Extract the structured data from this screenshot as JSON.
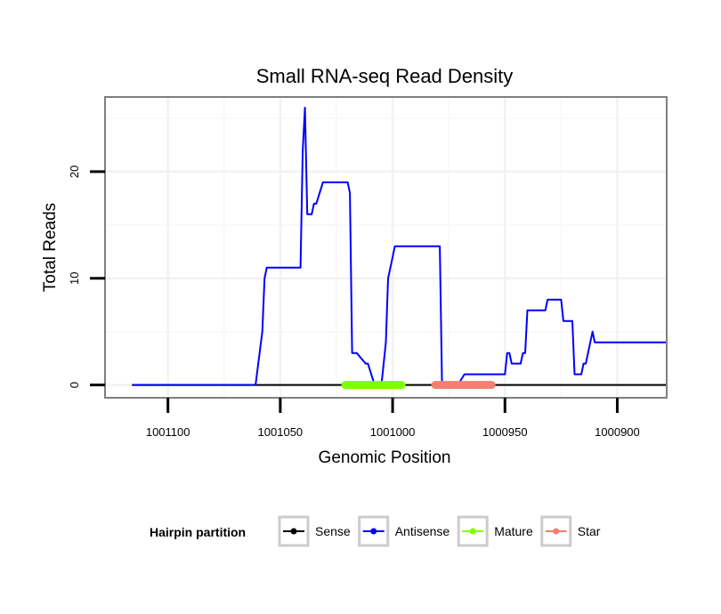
{
  "chart_data": {
    "type": "line",
    "title": "Small RNA-seq Read Density",
    "xlabel": "Genomic Position",
    "ylabel": "Total Reads",
    "xlim": [
      1001128,
      1000878
    ],
    "ylim": [
      -1.2,
      27
    ],
    "x_reversed": true,
    "grid": true,
    "x_ticks": [
      1001100,
      1001050,
      1001000,
      1000950,
      1000900
    ],
    "x_tick_labels": [
      "1001100",
      "1001050",
      "1001000",
      "1000950",
      "1000900"
    ],
    "y_ticks": [
      0,
      10,
      20
    ],
    "y_tick_labels": [
      "0",
      "10",
      "20"
    ],
    "legend": {
      "title": "Hairpin partition",
      "position": "bottom",
      "entries": [
        "Sense",
        "Antisense",
        "Mature",
        "Star"
      ]
    },
    "series": [
      {
        "name": "Sense",
        "color": "#000000",
        "x": [
          1001116,
          1000878
        ],
        "y": [
          0,
          0
        ]
      },
      {
        "name": "Antisense",
        "color": "#0000ff",
        "x": [
          1001116,
          1001061,
          1001058,
          1001057,
          1001056,
          1001041,
          1001040,
          1001039,
          1001038,
          1001036,
          1001035,
          1001034,
          1001031,
          1001020,
          1001019,
          1001018,
          1001016,
          1001012,
          1001011,
          1001008,
          1001006,
          1001005,
          1001003,
          1001002,
          1001000,
          1000999,
          1000997,
          1000979,
          1000978,
          1000971,
          1000968,
          1000967,
          1000950,
          1000949,
          1000948,
          1000947,
          1000943,
          1000942,
          1000941,
          1000940,
          1000932,
          1000931,
          1000925,
          1000924,
          1000920,
          1000919,
          1000916,
          1000915,
          1000914,
          1000911,
          1000910,
          1000878
        ],
        "y": [
          0,
          0,
          5,
          10,
          11,
          11,
          22,
          26,
          16,
          16,
          17,
          17,
          19,
          19,
          18,
          3,
          3,
          2,
          2,
          0,
          0,
          0,
          4,
          10,
          12,
          13,
          13,
          13,
          0,
          0,
          1,
          1,
          1,
          3,
          3,
          2,
          2,
          3,
          3,
          7,
          7,
          8,
          8,
          6,
          6,
          1,
          1,
          2,
          2,
          5,
          4,
          4
        ]
      }
    ],
    "segments": [
      {
        "name": "Mature",
        "color": "#7fff00",
        "x_start": 1001021,
        "x_end": 1000996,
        "y": 0
      },
      {
        "name": "Star",
        "color": "#f08070",
        "x_start": 1000981,
        "x_end": 1000956,
        "y": 0
      }
    ]
  }
}
